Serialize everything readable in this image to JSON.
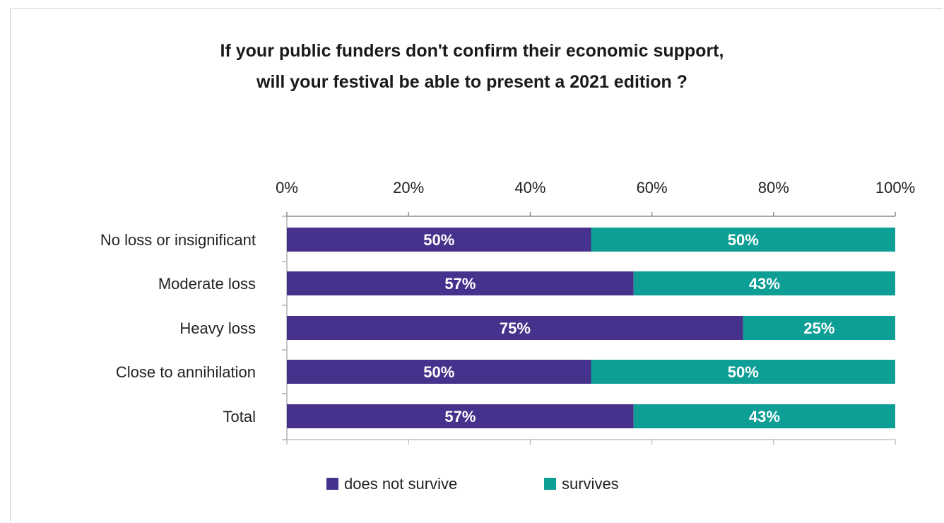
{
  "chart_data": {
    "type": "bar",
    "stacked": true,
    "orientation": "horizontal",
    "percent_stacked": true,
    "title_lines": [
      "If your public funders don't confirm their economic support,",
      "will your festival be able to present a 2021 edition ?"
    ],
    "categories": [
      "No loss or insignificant",
      "Moderate loss",
      "Heavy loss",
      "Close to annihilation",
      "Total"
    ],
    "series": [
      {
        "name": "does not survive",
        "color": "#46318c",
        "values": [
          50,
          57,
          75,
          50,
          57
        ],
        "labels": [
          "50%",
          "57%",
          "75%",
          "50%",
          "57%"
        ]
      },
      {
        "name": "survives",
        "color": "#0d9e96",
        "values": [
          50,
          43,
          25,
          50,
          43
        ],
        "labels": [
          "50%",
          "43%",
          "25%",
          "50%",
          "43%"
        ]
      }
    ],
    "xlim": [
      0,
      100
    ],
    "x_ticks": [
      "0%",
      "20%",
      "40%",
      "60%",
      "80%",
      "100%"
    ],
    "x_tick_values": [
      0,
      20,
      40,
      60,
      80,
      100
    ],
    "x_axis_position": "top",
    "grid": false,
    "legend_position": "bottom"
  }
}
